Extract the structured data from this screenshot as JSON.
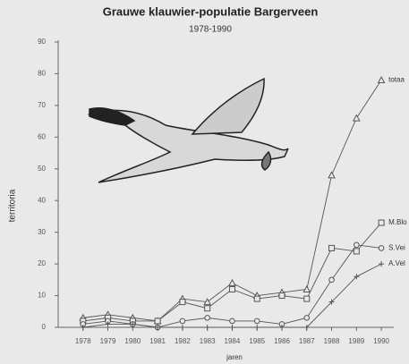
{
  "chart_data": {
    "type": "line",
    "title": "Grauwe klauwier-populatie Bargerveen",
    "subtitle": "1978-1990",
    "x_label": "jaren",
    "y_label": "territoria",
    "x": [
      1978,
      1979,
      1980,
      1981,
      1982,
      1983,
      1984,
      1985,
      1986,
      1987,
      1988,
      1989,
      1990
    ],
    "xlim": [
      1977,
      1990.5
    ],
    "xticks": [
      1978,
      1979,
      1980,
      1981,
      1982,
      1983,
      1984,
      1985,
      1986,
      1987,
      1988,
      1989,
      1990
    ],
    "ylim": [
      0,
      90
    ],
    "yticks": [
      0,
      10,
      20,
      30,
      40,
      50,
      60,
      70,
      80,
      90
    ],
    "series": [
      {
        "name": "totaa",
        "color": "#555",
        "marker": "triangle",
        "values": [
          3,
          4,
          3,
          2,
          9,
          8,
          14,
          10,
          11,
          12,
          48,
          66,
          78
        ]
      },
      {
        "name": "M.Blo",
        "color": "#555",
        "marker": "square",
        "values": [
          2,
          3,
          2,
          2,
          8,
          6,
          12,
          9,
          10,
          9,
          25,
          24,
          33
        ]
      },
      {
        "name": "S.Vei",
        "color": "#555",
        "marker": "circle",
        "values": [
          1,
          2,
          1,
          0,
          2,
          3,
          2,
          2,
          1,
          3,
          15,
          26,
          25
        ]
      },
      {
        "name": "A.Vel",
        "color": "#555",
        "marker": "plus",
        "values": [
          0,
          1,
          1,
          0,
          0,
          0,
          0,
          0,
          0,
          0,
          8,
          16,
          20
        ]
      }
    ]
  }
}
